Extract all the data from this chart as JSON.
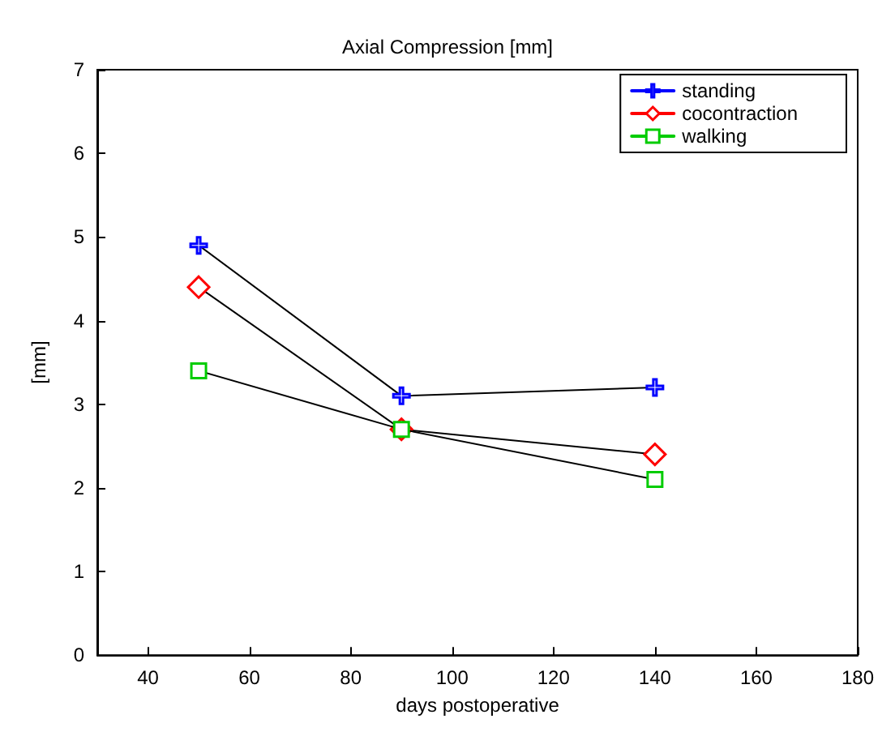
{
  "chart_data": {
    "type": "line",
    "title": "Axial Compression [mm]",
    "xlabel": "days postoperative",
    "ylabel": "[mm]",
    "x": [
      50,
      90,
      140
    ],
    "series": [
      {
        "name": "standing",
        "color": "#0000ff",
        "marker": "cross",
        "values": [
          4.9,
          3.1,
          3.2
        ]
      },
      {
        "name": "cocontraction",
        "color": "#ff0000",
        "marker": "diamond",
        "values": [
          4.4,
          2.7,
          2.4
        ]
      },
      {
        "name": "walking",
        "color": "#00cc00",
        "marker": "square",
        "values": [
          3.4,
          2.7,
          2.1
        ]
      }
    ],
    "xlim": [
      30,
      180
    ],
    "xticks": [
      40,
      60,
      80,
      100,
      120,
      140,
      160,
      180
    ],
    "ylim": [
      0,
      7
    ],
    "yticks": [
      0,
      1,
      2,
      3,
      4,
      5,
      6,
      7
    ],
    "grid": false,
    "legend": "top right",
    "line_style": "solid"
  }
}
